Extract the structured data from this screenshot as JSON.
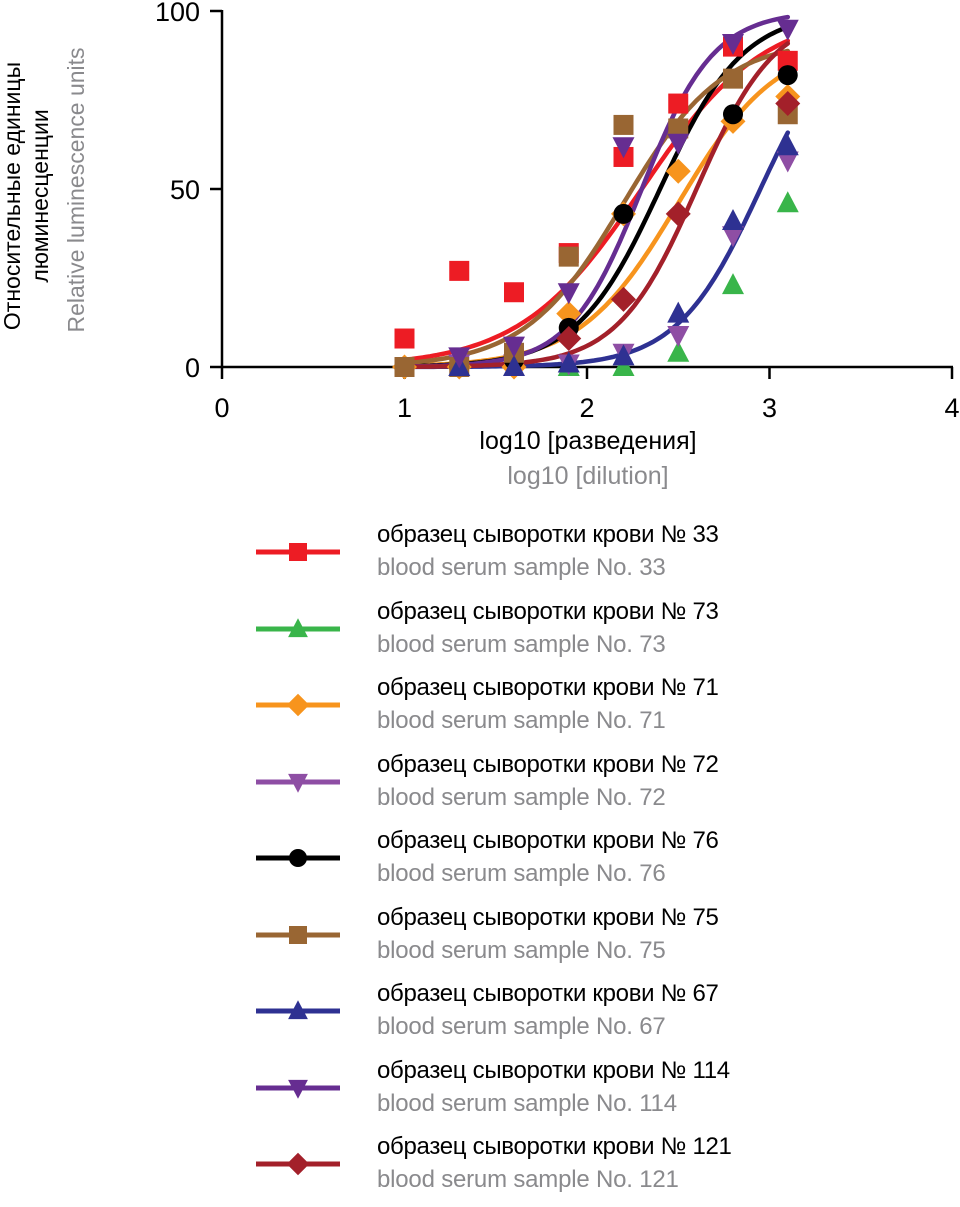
{
  "chart_data": {
    "type": "scatter",
    "title": "",
    "xlabel": "log10 [разведения]",
    "xlabel_en": "log10 [dilution]",
    "ylabel": "Относительные единицы люминесценции",
    "ylabel_line1": "Относительные единицы",
    "ylabel_line2": "люминесценции",
    "ylabel_en": "Relative luminescence units",
    "xlim": [
      0,
      4
    ],
    "ylim": [
      0,
      100
    ],
    "xticks": [
      0,
      1,
      2,
      3,
      4
    ],
    "yticks": [
      0,
      50,
      100
    ],
    "xtick_labels": [
      "0",
      "1",
      "2",
      "3",
      "4"
    ],
    "ytick_labels": [
      "0",
      "50",
      "100"
    ],
    "grid": false,
    "legend_position": "bottom",
    "fit": "sigmoidal curve per series (4-parameter logistic)",
    "x": [
      1.0,
      1.3,
      1.6,
      1.9,
      2.2,
      2.5,
      2.8,
      3.1
    ],
    "series": [
      {
        "name": "образец сыворотки крови № 33",
        "name_en": "blood serum sample No. 33",
        "color": "#ed1c24",
        "marker": "square",
        "values": [
          8,
          27,
          21,
          32,
          59,
          74,
          90,
          86
        ],
        "fit": {
          "bottom": 0,
          "top": 100,
          "ec50": 2.3,
          "hill": 1.3
        }
      },
      {
        "name": "образец сыворотки крови № 73",
        "name_en": "blood serum sample No. 73",
        "color": "#39b54a",
        "marker": "triangle-up",
        "values": [
          null,
          null,
          null,
          0,
          0,
          4,
          23,
          46
        ],
        "fit": null
      },
      {
        "name": "образец сыворотки крови № 71",
        "name_en": "blood serum sample No. 71",
        "color": "#f7941d",
        "marker": "diamond",
        "values": [
          0,
          0,
          0,
          15,
          43,
          55,
          69,
          76
        ],
        "fit": {
          "bottom": 0,
          "top": 92,
          "ec50": 2.5,
          "hill": 1.6
        }
      },
      {
        "name": "образец сыворотки крови № 72",
        "name_en": "blood serum sample No. 72",
        "color": "#8e4ea4",
        "marker": "triangle-down",
        "values": [
          null,
          1,
          1,
          1,
          4,
          9,
          37,
          58
        ],
        "fit": null
      },
      {
        "name": "образец сыворотки крови № 76",
        "name_en": "blood serum sample No. 76",
        "color": "#000000",
        "marker": "circle",
        "values": [
          0,
          0,
          2,
          11,
          43,
          67,
          71,
          82
        ],
        "fit": {
          "bottom": 0,
          "top": 100,
          "ec50": 2.4,
          "hill": 1.9
        }
      },
      {
        "name": "образец сыворотки крови № 75",
        "name_en": "blood serum sample No. 75",
        "color": "#996633",
        "marker": "square",
        "values": [
          0,
          0,
          4,
          31,
          68,
          67,
          81,
          71
        ],
        "fit": {
          "bottom": 0,
          "top": 92,
          "ec50": 2.2,
          "hill": 1.6
        }
      },
      {
        "name": "образец сыворотки крови № 67",
        "name_en": "blood serum sample No. 67",
        "color": "#2e3192",
        "marker": "triangle-up",
        "values": [
          null,
          0,
          0,
          1,
          3,
          15,
          41,
          62
        ],
        "fit": {
          "bottom": 0,
          "top": 100,
          "ec50": 2.95,
          "hill": 1.9
        }
      },
      {
        "name": "образец сыворотки крови № 114",
        "name_en": "blood serum sample No. 114",
        "color": "#662d91",
        "marker": "triangle-down",
        "values": [
          null,
          3,
          6,
          21,
          62,
          63,
          91,
          95
        ],
        "fit": {
          "bottom": 0,
          "top": 100,
          "ec50": 2.3,
          "hill": 2.2
        }
      },
      {
        "name": "образец сыворотки крови № 121",
        "name_en": "blood serum sample No. 121",
        "color": "#a3202a",
        "marker": "diamond",
        "values": [
          null,
          null,
          null,
          8,
          19,
          43,
          null,
          74
        ],
        "fit": {
          "bottom": 0,
          "top": 100,
          "ec50": 2.6,
          "hill": 2.0
        }
      }
    ]
  }
}
